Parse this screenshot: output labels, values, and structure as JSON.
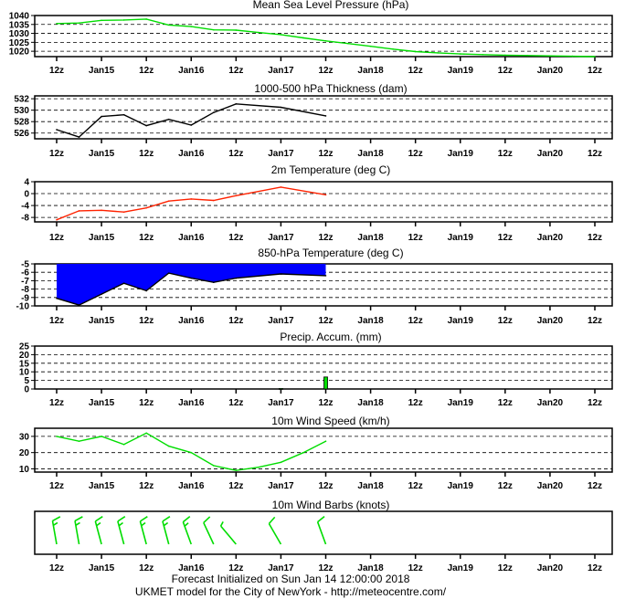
{
  "x_labels": [
    "12z",
    "Jan15",
    "12z",
    "Jan16",
    "12z",
    "Jan17",
    "12z",
    "Jan18",
    "12z",
    "Jan19",
    "12z",
    "Jan20",
    "12z"
  ],
  "footer": {
    "line1": "Forecast Initialized on Sun Jan 14 12:00:00 2018",
    "line2": "UKMET model for the City of NewYork - http://meteocentre.com/"
  },
  "colors": {
    "pressure": "#00dd00",
    "thickness": "#000000",
    "temp2m": "#ff2200",
    "temp850_fill": "#0000ff",
    "precip": "#00dd00",
    "wind": "#00dd00",
    "barbs": "#00dd00"
  },
  "chart_data": [
    {
      "type": "line",
      "title": "Mean Sea Level Pressure (hPa)",
      "yticks": [
        1020,
        1025,
        1030,
        1035,
        1040
      ],
      "ylim": [
        1017,
        1040
      ],
      "x": [
        0,
        0.5,
        1,
        1.5,
        2,
        2.5,
        3,
        3.5,
        4,
        4.5,
        5,
        5.5,
        6,
        6.5,
        7,
        7.5,
        8,
        8.5,
        9,
        9.5,
        10,
        10.5,
        11,
        11.5,
        12
      ],
      "values": [
        1035.5,
        1035.8,
        1037.3,
        1037.5,
        1038.0,
        1034.7,
        1033.8,
        1032.0,
        1031.8,
        1030.5,
        1029.3,
        1027.5,
        1025.8,
        1024.3,
        1022.8,
        1021.2,
        1019.8,
        1019.1,
        1018.5,
        1018.1,
        1017.8,
        1017.6,
        1017.4,
        1017.2,
        1017.0
      ]
    },
    {
      "type": "line",
      "title": "1000-500 hPa Thickness (dam)",
      "yticks": [
        526,
        528,
        530,
        532
      ],
      "ylim": [
        525,
        532.5
      ],
      "x": [
        0,
        0.5,
        1,
        1.5,
        2,
        2.5,
        3,
        3.5,
        4,
        5,
        6
      ],
      "values": [
        526.6,
        525.3,
        528.9,
        529.2,
        527.3,
        528.4,
        527.4,
        529.6,
        531.1,
        530.5,
        529.0
      ]
    },
    {
      "type": "line",
      "title": "2m Temperature (deg C)",
      "yticks": [
        -8,
        -4,
        0,
        4
      ],
      "ylim": [
        -9.5,
        4
      ],
      "x": [
        0,
        0.5,
        1,
        1.5,
        2,
        2.5,
        3,
        3.5,
        4,
        5,
        6
      ],
      "values": [
        -8.8,
        -5.8,
        -5.6,
        -6.2,
        -4.8,
        -2.5,
        -1.8,
        -2.3,
        -0.7,
        2.2,
        -0.4
      ]
    },
    {
      "type": "area",
      "title": "850-hPa Temperature (deg C)",
      "yticks": [
        -10,
        -9,
        -8,
        -7,
        -6,
        -5
      ],
      "ylim": [
        -10,
        -5
      ],
      "x": [
        0,
        0.5,
        1,
        1.5,
        2,
        2.5,
        3,
        3.5,
        4,
        5,
        6
      ],
      "values": [
        -9.1,
        -9.9,
        -8.6,
        -7.3,
        -8.2,
        -6.1,
        -6.7,
        -7.2,
        -6.7,
        -6.2,
        -6.4
      ]
    },
    {
      "type": "bar",
      "title": "Precip. Accum. (mm)",
      "yticks": [
        0,
        5,
        10,
        15,
        20,
        25
      ],
      "ylim": [
        0,
        25
      ],
      "x": [
        5,
        6
      ],
      "values": [
        0.3,
        7
      ]
    },
    {
      "type": "line",
      "title": "10m Wind Speed (km/h)",
      "yticks": [
        10,
        20,
        30
      ],
      "ylim": [
        8,
        35
      ],
      "x": [
        0,
        0.5,
        1,
        1.5,
        2,
        2.5,
        3,
        3.5,
        4,
        4.5,
        5,
        5.5,
        6
      ],
      "values": [
        30,
        27,
        30,
        25,
        32,
        24,
        20,
        12,
        9,
        11,
        14,
        20,
        27
      ]
    },
    {
      "type": "barbs",
      "title": "10m Wind Barbs  (knots)",
      "x": [
        0,
        0.5,
        1,
        1.5,
        2,
        2.5,
        3,
        3.5,
        4,
        5,
        6
      ],
      "speed_kt": [
        15,
        15,
        15,
        15,
        15,
        15,
        15,
        10,
        5,
        10,
        10
      ],
      "dir_deg": [
        350,
        350,
        345,
        345,
        345,
        345,
        340,
        335,
        320,
        330,
        340
      ]
    }
  ]
}
